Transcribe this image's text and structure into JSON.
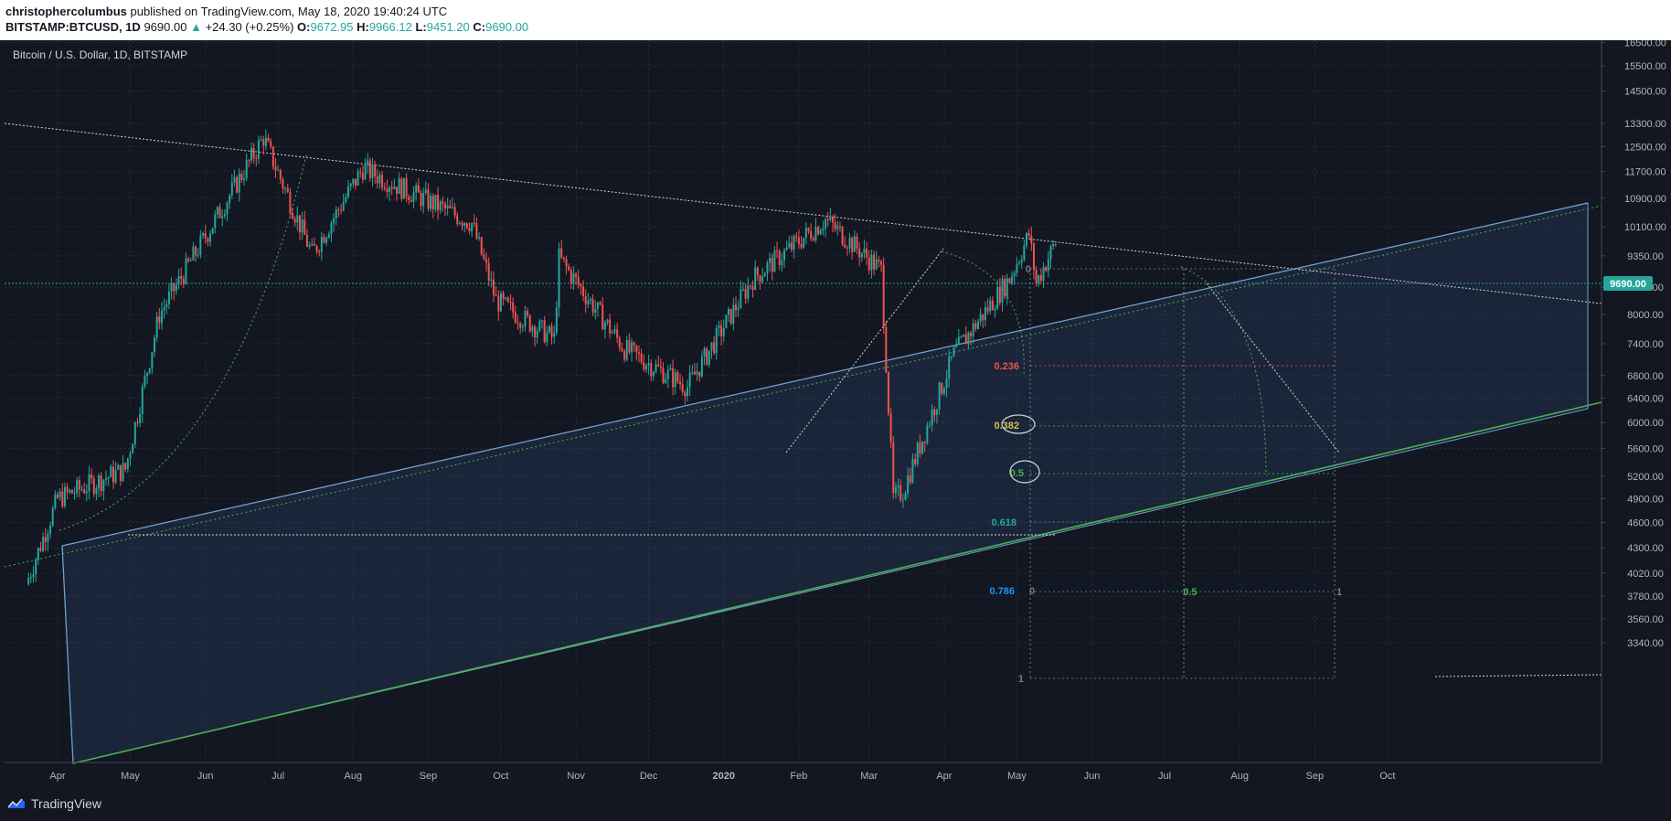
{
  "header": {
    "author": "christophercolumbus",
    "published_text": "published on TradingView.com, May 18, 2020 19:40:24 UTC",
    "symbol_line": "BITSTAMP:BTCUSD, 1D",
    "last_price": "9690.00",
    "change_arrow": "▲",
    "change": "+24.30 (+0.25%)",
    "o_label": "O:",
    "o_value": "9672.95",
    "h_label": "H:",
    "h_value": "9966.12",
    "l_label": "L:",
    "l_value": "9451.20",
    "c_label": "C:",
    "c_value": "9690.00"
  },
  "footer": {
    "brand": "TradingView"
  },
  "colors": {
    "background": "#131722",
    "up": "#26a69a",
    "down": "#ef5350",
    "channel_fill": "#2f4a78",
    "channel_edge": "#6fa0cc",
    "support_line": "#4caf50",
    "price_tag": "#26a69a"
  },
  "chart_data": {
    "type": "candlestick",
    "title": "Bitcoin / U.S. Dollar, 1D, BITSTAMP",
    "y_scale": "log",
    "ylim": [
      3230,
      17200
    ],
    "y_ticks": [
      "16500.00",
      "15500.00",
      "14500.00",
      "13300.00",
      "12500.00",
      "11700.00",
      "10900.00",
      "10100.00",
      "9350.00",
      "8600.00",
      "8000.00",
      "7400.00",
      "6800.00",
      "6400.00",
      "6000.00",
      "5600.00",
      "5200.00",
      "4900.00",
      "4600.00",
      "4300.00",
      "4020.00",
      "3780.00",
      "3560.00",
      "3340.00"
    ],
    "x_ticks": [
      "Apr",
      "May",
      "Jun",
      "Jul",
      "Aug",
      "Sep",
      "Oct",
      "Nov",
      "Dec",
      "2020",
      "Feb",
      "Mar",
      "Apr",
      "May",
      "Jun",
      "Jul",
      "Aug",
      "Sep",
      "Oct"
    ],
    "current_price": "9690.00",
    "price_anchors": [
      {
        "date": "2019-03-20",
        "close": 3900
      },
      {
        "date": "2019-04-02",
        "close": 4900
      },
      {
        "date": "2019-04-30",
        "close": 5300
      },
      {
        "date": "2019-05-14",
        "close": 8000
      },
      {
        "date": "2019-06-26",
        "close": 12800
      },
      {
        "date": "2019-07-16",
        "close": 9400
      },
      {
        "date": "2019-08-06",
        "close": 11800
      },
      {
        "date": "2019-09-20",
        "close": 10200
      },
      {
        "date": "2019-09-30",
        "close": 8300
      },
      {
        "date": "2019-10-24",
        "close": 7500
      },
      {
        "date": "2019-10-26",
        "close": 9300
      },
      {
        "date": "2019-11-22",
        "close": 7300
      },
      {
        "date": "2019-12-18",
        "close": 6600
      },
      {
        "date": "2020-01-14",
        "close": 8800
      },
      {
        "date": "2020-02-13",
        "close": 10300
      },
      {
        "date": "2020-03-07",
        "close": 9000
      },
      {
        "date": "2020-03-12",
        "close": 4900
      },
      {
        "date": "2020-03-16",
        "close": 5000
      },
      {
        "date": "2020-04-06",
        "close": 7200
      },
      {
        "date": "2020-04-29",
        "close": 8800
      },
      {
        "date": "2020-05-07",
        "close": 9900
      },
      {
        "date": "2020-05-10",
        "close": 8700
      },
      {
        "date": "2020-05-18",
        "close": 9690
      }
    ],
    "fib_retracement": [
      {
        "level": "0"
      },
      {
        "level": "0.236"
      },
      {
        "level": "0.382"
      },
      {
        "level": "0.5"
      },
      {
        "level": "0.618"
      },
      {
        "level": "0.786"
      },
      {
        "level": "1"
      }
    ],
    "fib_time_labels": [
      "0",
      "0.5",
      "1"
    ]
  }
}
